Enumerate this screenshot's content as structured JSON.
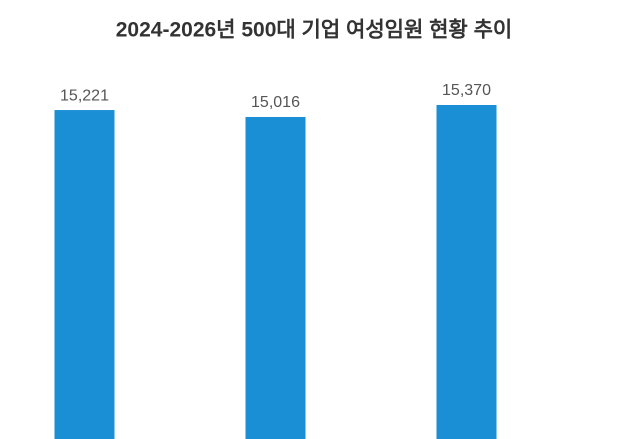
{
  "chart_data": {
    "type": "bar",
    "title": "2024-2026년 500대 기업 여성임원 현황 추이",
    "categories": [
      null,
      null,
      null
    ],
    "values": [
      15221,
      15016,
      15370
    ],
    "value_labels": [
      "15,221",
      "15,016",
      "15,370"
    ],
    "color": "#1a8fd6",
    "ylim": [
      5500,
      16700
    ]
  }
}
